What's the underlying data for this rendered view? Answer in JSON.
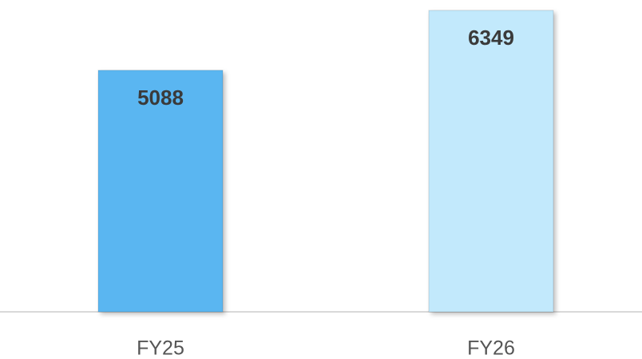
{
  "chart_data": {
    "type": "bar",
    "categories": [
      "FY25",
      "FY26"
    ],
    "values": [
      5088,
      6349
    ],
    "colors": [
      "#5ab6f1",
      "#c2e9fc"
    ]
  }
}
